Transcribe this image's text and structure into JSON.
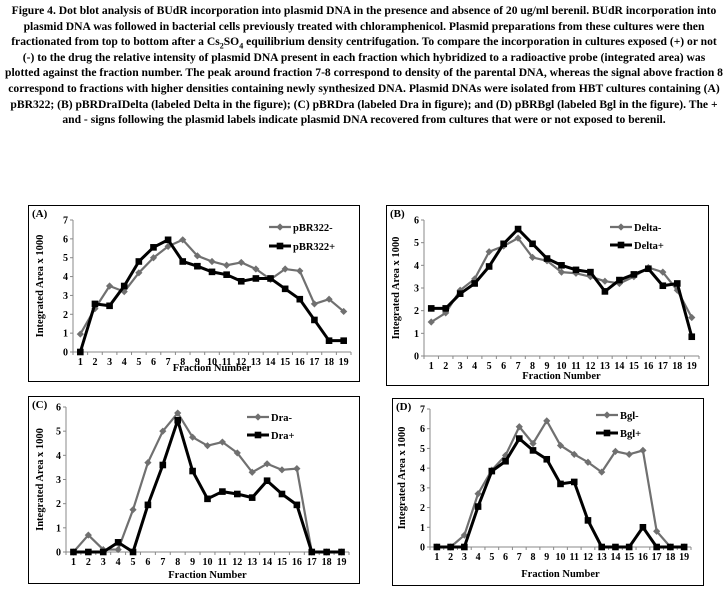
{
  "caption": {
    "part1": "Figure 4. Dot blot analysis of BUdR incorporation into plasmid DNA in the presence and absence of 20 ug/ml berenil. BUdR incorporation into plasmid DNA was followed in bacterial cells previously treated with chloramphenicol. Plasmid preparations from these cultures were then fractionated from top to bottom after a Cs",
    "sub1": "2",
    "part2": "SO",
    "sub2": "4",
    "part3": " equilibrium density centrifugation. To compare the incorporation in cultures exposed (+) or not (-) to the drug the relative intensity of plasmid DNA present in each fraction which hybridized to a radioactive probe (integrated area) was plotted against the fraction number. The peak around fraction 7-8 correspond to density of the parental DNA, whereas the signal above fraction 8 correspond to fractions with higher densities containing newly synthesized DNA. Plasmid DNAs were isolated from HBT cultures containing (A) pBR322; (B) pBRDraIDelta (labeled Delta in the figure); (C) pBRDra (labeled Dra in figure); and (D) pBRBgl (labeled Bgl in the figure). The + and - signs following the plasmid labels indicate plasmid DNA recovered from cultures that were or not exposed to berenil."
  },
  "chart_data": [
    {
      "panel": "(A)",
      "type": "line",
      "xlabel": "Fraction Number",
      "ylabel": "Integrated Area x 1000",
      "x": [
        1,
        2,
        3,
        4,
        5,
        6,
        7,
        8,
        9,
        10,
        11,
        12,
        13,
        14,
        15,
        16,
        17,
        18,
        19
      ],
      "ylim": [
        0,
        7
      ],
      "yticks": [
        0,
        1,
        2,
        3,
        4,
        5,
        6,
        7
      ],
      "legend_position": "top-right",
      "series": [
        {
          "name": "pBR322-",
          "marker": "diamond",
          "color": "#707070",
          "values": [
            0.95,
            2.3,
            3.5,
            3.2,
            4.2,
            5.0,
            5.6,
            5.95,
            5.1,
            4.8,
            4.6,
            4.75,
            4.4,
            3.85,
            4.4,
            4.3,
            2.55,
            2.8,
            2.15
          ]
        },
        {
          "name": "pBR322+",
          "marker": "square",
          "color": "#000000",
          "values": [
            0.0,
            2.55,
            2.45,
            3.5,
            4.8,
            5.55,
            5.95,
            4.8,
            4.55,
            4.25,
            4.1,
            3.75,
            3.9,
            3.9,
            3.35,
            2.8,
            1.7,
            0.6,
            0.6
          ]
        }
      ]
    },
    {
      "panel": "(B)",
      "type": "line",
      "xlabel": "Fraction Number",
      "ylabel": "Integrated Area x 1000",
      "x": [
        1,
        2,
        3,
        4,
        5,
        6,
        7,
        8,
        9,
        10,
        11,
        12,
        13,
        14,
        15,
        16,
        17,
        18,
        19
      ],
      "ylim": [
        0,
        6
      ],
      "yticks": [
        0,
        1,
        2,
        3,
        4,
        5,
        6
      ],
      "legend_position": "top-right",
      "series": [
        {
          "name": "Delta-",
          "marker": "diamond",
          "color": "#707070",
          "values": [
            1.5,
            1.9,
            2.9,
            3.4,
            4.6,
            4.85,
            5.2,
            4.35,
            4.2,
            3.7,
            3.65,
            3.5,
            3.3,
            3.2,
            3.5,
            3.9,
            3.7,
            2.9,
            1.7
          ]
        },
        {
          "name": "Delta+",
          "marker": "square",
          "color": "#000000",
          "values": [
            2.1,
            2.1,
            2.75,
            3.2,
            3.95,
            4.95,
            5.6,
            4.95,
            4.3,
            4.0,
            3.8,
            3.7,
            2.85,
            3.35,
            3.6,
            3.85,
            3.1,
            3.2,
            0.85
          ]
        }
      ]
    },
    {
      "panel": "(C)",
      "type": "line",
      "xlabel": "Fraction Number",
      "ylabel": "Integrated Area x 1000",
      "x": [
        1,
        2,
        3,
        4,
        5,
        6,
        7,
        8,
        9,
        10,
        11,
        12,
        13,
        14,
        15,
        16,
        17,
        18,
        19
      ],
      "ylim": [
        0,
        6
      ],
      "yticks": [
        0,
        1,
        2,
        3,
        4,
        5,
        6
      ],
      "legend_position": "top-right",
      "series": [
        {
          "name": "Dra-",
          "marker": "diamond",
          "color": "#707070",
          "values": [
            0.0,
            0.7,
            0.1,
            0.1,
            1.75,
            3.7,
            5.0,
            5.75,
            4.75,
            4.4,
            4.55,
            4.1,
            3.3,
            3.65,
            3.4,
            3.45,
            0.0,
            0.0,
            0.0
          ]
        },
        {
          "name": "Dra+",
          "marker": "square",
          "color": "#000000",
          "values": [
            0.0,
            0.0,
            0.0,
            0.4,
            0.0,
            1.95,
            3.6,
            5.45,
            3.35,
            2.2,
            2.5,
            2.4,
            2.25,
            2.95,
            2.4,
            1.95,
            0.0,
            0.0,
            0.0
          ]
        }
      ]
    },
    {
      "panel": "(D)",
      "type": "line",
      "xlabel": "Fraction Number",
      "ylabel": "Integrated Area x 1000",
      "x": [
        1,
        2,
        3,
        4,
        5,
        6,
        7,
        8,
        9,
        10,
        11,
        12,
        13,
        14,
        15,
        16,
        17,
        18,
        19
      ],
      "ylim": [
        0,
        7
      ],
      "yticks": [
        0,
        1,
        2,
        3,
        4,
        5,
        6,
        7
      ],
      "legend_position": "top-right",
      "series": [
        {
          "name": "Bgl-",
          "marker": "diamond",
          "color": "#707070",
          "values": [
            0.0,
            0.0,
            0.6,
            2.7,
            3.9,
            4.65,
            6.1,
            5.25,
            6.4,
            5.15,
            4.7,
            4.3,
            3.8,
            4.85,
            4.7,
            4.9,
            0.8,
            0.0,
            0.0
          ]
        },
        {
          "name": "Bgl+",
          "marker": "square",
          "color": "#000000",
          "values": [
            0.0,
            0.0,
            0.0,
            2.05,
            3.85,
            4.35,
            5.5,
            4.9,
            4.45,
            3.2,
            3.3,
            1.35,
            0.0,
            0.0,
            0.0,
            1.0,
            0.0,
            0.0,
            0.0
          ]
        }
      ]
    }
  ]
}
